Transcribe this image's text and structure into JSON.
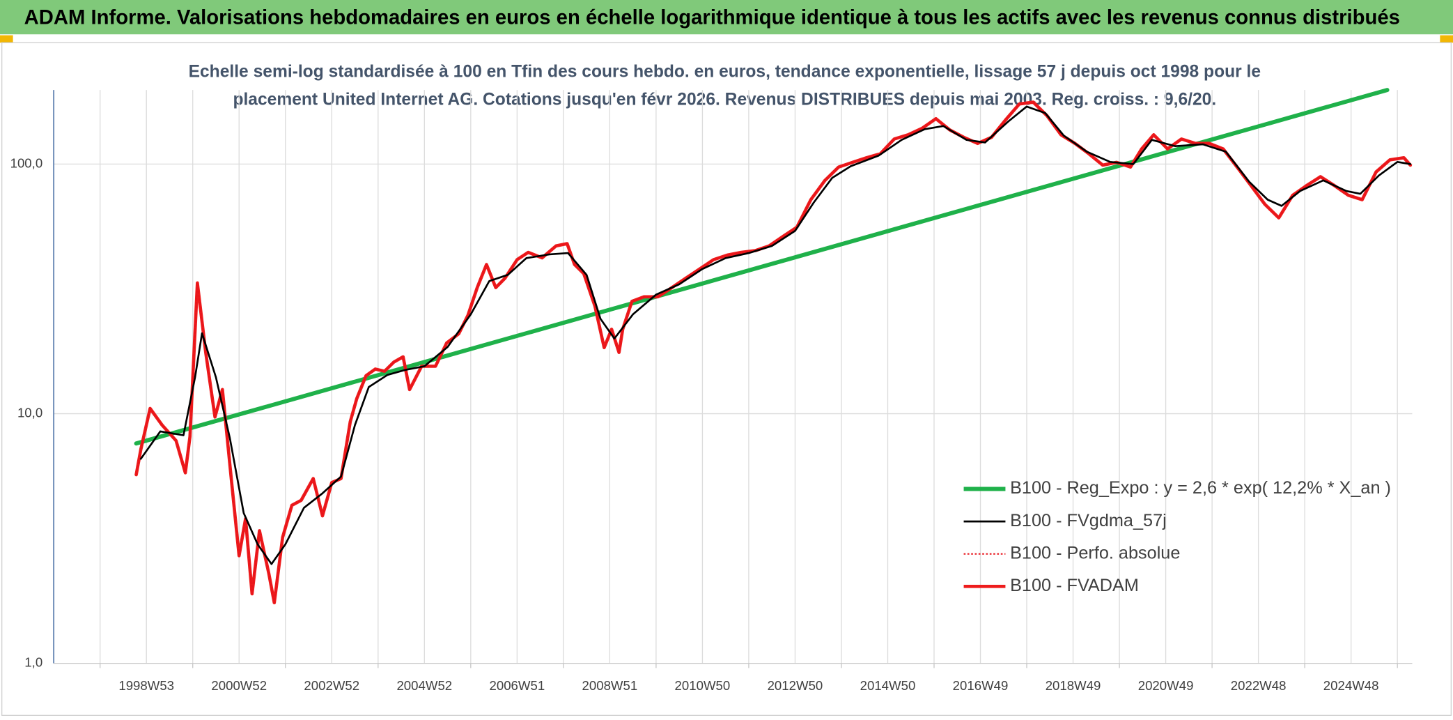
{
  "chart_data": {
    "type": "line",
    "title": "ADAM Informe. Valorisations hebdomadaires en euros en échelle logarithmique identique à tous les actifs avec les revenus connus distribués",
    "subtitle": [
      "Echelle semi-log standardisée à 100 en Tfin des cours hebdo. en euros, tendance exponentielle, lissage 57 j depuis oct 1998 pour le",
      "placement United Internet AG. Cotations jusqu'en févr 2026. Revenus DISTRIBUES depuis mai 2003. Reg. croiss. : 9,6/20."
    ],
    "log_y": true,
    "grid": true,
    "legend": "bottom-right",
    "xlim": [
      1997,
      2026.32
    ],
    "ylim": [
      1,
      198
    ],
    "yticks": [
      {
        "value": 1,
        "label": "1,0"
      },
      {
        "value": 10,
        "label": "10,0"
      },
      {
        "value": 100,
        "label": "100,0"
      }
    ],
    "xticks": [
      {
        "value": 1999,
        "label": "1998W53"
      },
      {
        "value": 2001,
        "label": "2000W52"
      },
      {
        "value": 2003,
        "label": "2002W52"
      },
      {
        "value": 2005,
        "label": "2004W52"
      },
      {
        "value": 2007,
        "label": "2006W51"
      },
      {
        "value": 2009,
        "label": "2008W51"
      },
      {
        "value": 2011,
        "label": "2010W50"
      },
      {
        "value": 2013,
        "label": "2012W50"
      },
      {
        "value": 2015,
        "label": "2014W50"
      },
      {
        "value": 2017,
        "label": "2016W49"
      },
      {
        "value": 2019,
        "label": "2018W49"
      },
      {
        "value": 2021,
        "label": "2020W49"
      },
      {
        "value": 2023,
        "label": "2022W48"
      },
      {
        "value": 2025,
        "label": "2024W48"
      }
    ],
    "xminorticks": [
      1998,
      2000,
      2002,
      2004,
      2006,
      2008,
      2010,
      2012,
      2014,
      2016,
      2018,
      2020,
      2022,
      2024,
      2026
    ],
    "series": [
      {
        "name": "B100 - Reg_Expo : y = 2,6 * exp( 12,2% *  X_an )",
        "color": "#1fb14a",
        "style": "solid",
        "width": 4.5,
        "x": [
          1998.78,
          2025.78
        ],
        "values": [
          7.6,
          198
        ]
      },
      {
        "name": "B100 - FVgdma_57j",
        "color": "#000000",
        "style": "solid",
        "width": 2,
        "x": [
          1998.88,
          1999.3,
          1999.8,
          2000.05,
          2000.2,
          2000.5,
          2000.8,
          2001.1,
          2001.4,
          2001.7,
          2002.0,
          2002.4,
          2002.8,
          2003.2,
          2003.5,
          2003.8,
          2004.2,
          2004.6,
          2005.0,
          2005.5,
          2006.0,
          2006.4,
          2006.8,
          2007.2,
          2007.7,
          2008.1,
          2008.5,
          2008.8,
          2009.1,
          2009.5,
          2010.0,
          2010.5,
          2011.0,
          2011.5,
          2012.0,
          2012.5,
          2013.0,
          2013.4,
          2013.8,
          2014.2,
          2014.8,
          2015.3,
          2015.8,
          2016.2,
          2016.7,
          2017.1,
          2017.6,
          2018.0,
          2018.4,
          2018.8,
          2019.3,
          2019.8,
          2020.3,
          2020.7,
          2021.2,
          2021.8,
          2022.3,
          2022.8,
          2023.2,
          2023.5,
          2023.9,
          2024.4,
          2024.9,
          2025.2,
          2025.6,
          2026.0,
          2026.28
        ],
        "values": [
          6.6,
          8.5,
          8.2,
          14,
          21,
          14,
          8,
          4,
          3,
          2.5,
          3.0,
          4.2,
          4.8,
          5.6,
          9,
          12.8,
          14.3,
          15,
          15.5,
          18.5,
          25,
          34,
          36,
          42,
          43.5,
          44,
          36,
          24,
          20,
          25,
          30,
          33,
          38,
          42,
          44,
          47,
          54,
          70,
          88,
          98,
          108,
          125,
          138,
          142,
          125,
          122,
          148,
          170,
          160,
          130,
          112,
          102,
          100,
          125,
          118,
          120,
          112,
          85,
          72,
          68,
          78,
          86,
          78,
          76,
          90,
          102,
          100
        ]
      },
      {
        "name": "B100 - Perfo. absolue",
        "color": "#e8141b",
        "style": "dotted",
        "width": 1.5,
        "x": [
          1998.78,
          1998.88,
          1999.08,
          1999.34,
          1999.64,
          1999.84,
          1999.94,
          2000.1,
          2000.28,
          2000.48,
          2000.64,
          2000.84,
          2001.0,
          2001.14,
          2001.28,
          2001.44,
          2001.64,
          2001.76,
          2001.94,
          2002.14,
          2002.34,
          2002.6,
          2002.8,
          2003.0,
          2003.2,
          2003.4,
          2003.54,
          2003.74,
          2003.94,
          2004.14,
          2004.34,
          2004.54,
          2004.68,
          2004.94,
          2005.24,
          2005.48,
          2005.74,
          2005.94,
          2006.14,
          2006.34,
          2006.54,
          2006.74,
          2007.0,
          2007.24,
          2007.54,
          2007.84,
          2008.08,
          2008.24,
          2008.44,
          2008.68,
          2008.88,
          2009.04,
          2009.2,
          2009.28,
          2009.48,
          2009.74,
          2010.04,
          2010.34,
          2010.64,
          2010.94,
          2011.24,
          2011.54,
          2011.84,
          2012.14,
          2012.44,
          2012.74,
          2013.04,
          2013.34,
          2013.64,
          2013.94,
          2014.24,
          2014.54,
          2014.84,
          2015.14,
          2015.44,
          2015.74,
          2016.04,
          2016.34,
          2016.64,
          2016.94,
          2017.24,
          2017.54,
          2017.84,
          2018.14,
          2018.44,
          2018.74,
          2019.04,
          2019.34,
          2019.64,
          2019.94,
          2020.24,
          2020.48,
          2020.74,
          2021.04,
          2021.34,
          2021.64,
          2021.94,
          2022.24,
          2022.54,
          2022.84,
          2023.14,
          2023.44,
          2023.74,
          2024.04,
          2024.34,
          2024.64,
          2024.94,
          2025.24,
          2025.54,
          2025.84,
          2026.14,
          2026.28
        ],
        "values": [
          5.7,
          7.2,
          10.5,
          9.0,
          7.8,
          5.8,
          8.1,
          33.4,
          17.6,
          9.7,
          12.5,
          5.3,
          2.7,
          3.8,
          1.9,
          3.4,
          2.3,
          1.75,
          3.2,
          4.3,
          4.5,
          5.5,
          3.9,
          5.3,
          5.5,
          9.3,
          11.5,
          14.2,
          15.1,
          14.8,
          16.1,
          16.9,
          12.5,
          15.5,
          15.5,
          19.2,
          20.9,
          24.8,
          32,
          39.6,
          32,
          34.9,
          41.4,
          44.3,
          42.1,
          47,
          48,
          39.6,
          36.4,
          27,
          18.4,
          21.8,
          17.6,
          21.8,
          28.2,
          29.4,
          29.4,
          32,
          34.9,
          38,
          41.4,
          43.2,
          44.3,
          45,
          47,
          51.3,
          55.9,
          72,
          85.8,
          97.3,
          101.6,
          106,
          110,
          126,
          131,
          139,
          152,
          137,
          128,
          121,
          128,
          150,
          174,
          177,
          156,
          131,
          121,
          110,
          99,
          101.6,
          97.3,
          115,
          131,
          115,
          126,
          121,
          121,
          115,
          97.3,
          82,
          69,
          60.9,
          75,
          82,
          89,
          82,
          75,
          72,
          93,
          104,
          106,
          99
        ]
      },
      {
        "name": "B100 - FVADAM",
        "color": "#ee1c1c",
        "style": "solid",
        "width": 3.5,
        "x": [
          1998.78,
          1998.88,
          1999.08,
          1999.34,
          1999.64,
          1999.84,
          1999.94,
          2000.1,
          2000.28,
          2000.48,
          2000.64,
          2000.84,
          2001.0,
          2001.14,
          2001.28,
          2001.44,
          2001.64,
          2001.76,
          2001.94,
          2002.14,
          2002.34,
          2002.6,
          2002.8,
          2003.0,
          2003.2,
          2003.4,
          2003.54,
          2003.74,
          2003.94,
          2004.14,
          2004.34,
          2004.54,
          2004.68,
          2004.94,
          2005.24,
          2005.48,
          2005.74,
          2005.94,
          2006.14,
          2006.34,
          2006.54,
          2006.74,
          2007.0,
          2007.24,
          2007.54,
          2007.84,
          2008.08,
          2008.24,
          2008.44,
          2008.68,
          2008.88,
          2009.04,
          2009.2,
          2009.28,
          2009.48,
          2009.74,
          2010.04,
          2010.34,
          2010.64,
          2010.94,
          2011.24,
          2011.54,
          2011.84,
          2012.14,
          2012.44,
          2012.74,
          2013.04,
          2013.34,
          2013.64,
          2013.94,
          2014.24,
          2014.54,
          2014.84,
          2015.14,
          2015.44,
          2015.74,
          2016.04,
          2016.34,
          2016.64,
          2016.94,
          2017.24,
          2017.54,
          2017.84,
          2018.14,
          2018.44,
          2018.74,
          2019.04,
          2019.34,
          2019.64,
          2019.94,
          2020.24,
          2020.48,
          2020.74,
          2021.04,
          2021.34,
          2021.64,
          2021.94,
          2022.24,
          2022.54,
          2022.84,
          2023.14,
          2023.44,
          2023.74,
          2024.04,
          2024.34,
          2024.64,
          2024.94,
          2025.24,
          2025.54,
          2025.84,
          2026.14,
          2026.28
        ],
        "values": [
          5.7,
          7.2,
          10.5,
          9.0,
          7.8,
          5.8,
          8.1,
          33.4,
          17.6,
          9.7,
          12.5,
          5.3,
          2.7,
          3.8,
          1.9,
          3.4,
          2.3,
          1.75,
          3.2,
          4.3,
          4.5,
          5.5,
          3.9,
          5.3,
          5.5,
          9.3,
          11.5,
          14.2,
          15.1,
          14.8,
          16.1,
          16.9,
          12.5,
          15.5,
          15.5,
          19.2,
          20.9,
          24.8,
          32,
          39.6,
          32,
          34.9,
          41.4,
          44.3,
          42.1,
          47,
          48,
          39.6,
          36.4,
          27,
          18.4,
          21.8,
          17.6,
          21.8,
          28.2,
          29.4,
          29.4,
          32,
          34.9,
          38,
          41.4,
          43.2,
          44.3,
          45,
          47,
          51.3,
          55.9,
          72,
          85.8,
          97.3,
          101.6,
          106,
          110,
          126,
          131,
          139,
          152,
          137,
          128,
          121,
          128,
          150,
          174,
          177,
          156,
          131,
          121,
          110,
          99,
          101.6,
          97.3,
          115,
          131,
          115,
          126,
          121,
          121,
          115,
          97.3,
          82,
          69,
          60.9,
          75,
          82,
          89,
          82,
          75,
          72,
          93,
          104,
          106,
          99
        ]
      }
    ]
  }
}
